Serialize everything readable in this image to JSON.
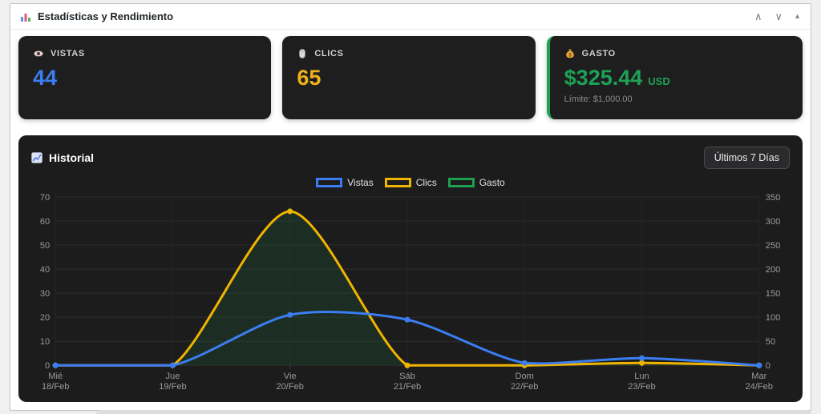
{
  "widget": {
    "title": "Estadísticas y Rendimiento",
    "controls": {
      "up": "∧",
      "down": "∨",
      "collapse": "▴"
    }
  },
  "cards": [
    {
      "label": "VISTAS",
      "value": "44",
      "color": "#3b7df2",
      "icon": "eye-icon"
    },
    {
      "label": "CLICS",
      "value": "65",
      "color": "#efb119",
      "icon": "mouse-icon"
    },
    {
      "label": "GASTO",
      "value": "$325.44",
      "unit": "USD",
      "limit": "Límite: $1,000.00",
      "color": "#1da255",
      "accent": "#22a055",
      "icon": "money-bag-icon"
    }
  ],
  "chart_panel": {
    "title": "Historial",
    "range_button": "Últimos 7 Días"
  },
  "chart_data": {
    "type": "line",
    "title": "Historial",
    "categories": [
      [
        "Mié",
        "18/Feb"
      ],
      [
        "Jue",
        "19/Feb"
      ],
      [
        "Vie",
        "20/Feb"
      ],
      [
        "Sáb",
        "21/Feb"
      ],
      [
        "Dom",
        "22/Feb"
      ],
      [
        "Lun",
        "23/Feb"
      ],
      [
        "Mar",
        "24/Feb"
      ]
    ],
    "series": [
      {
        "name": "Vistas",
        "color": "#3b7df2",
        "axis": "left",
        "width": 3,
        "fill": false,
        "values": [
          0,
          0,
          21,
          19,
          1,
          3,
          0
        ]
      },
      {
        "name": "Clics",
        "color": "#f0b400",
        "axis": "left",
        "width": 3,
        "fill": false,
        "values": [
          0,
          0,
          64,
          0,
          0,
          1,
          0
        ]
      },
      {
        "name": "Gasto",
        "color": "#1e9e50",
        "axis": "right",
        "width": 2,
        "fill": true,
        "fill_color": "rgba(30,158,80,0.14)",
        "values": [
          0,
          0,
          320.44,
          0,
          0,
          5,
          0
        ]
      }
    ],
    "left_axis": {
      "min": 0,
      "max": 70,
      "step": 10
    },
    "right_axis": {
      "min": 0,
      "max": 350,
      "step": 50
    },
    "legend_position": "top",
    "grid": true
  }
}
